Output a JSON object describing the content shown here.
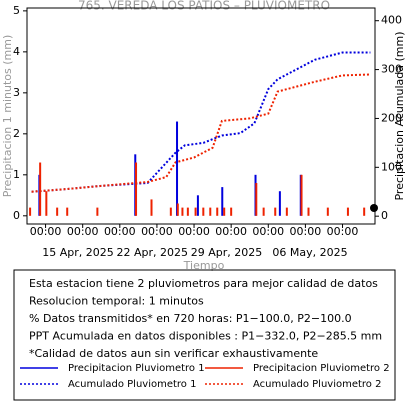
{
  "chart_data": {
    "type": "combo",
    "title": "765. VEREDA LOS PATIOS – PLUVIOMETRO",
    "xlabel": "Tiempo",
    "ylabel": "Precipitacion 1 minutos (mm)",
    "y2label": "Precipitacion Acumulada (mm)",
    "xlim": [
      "2025-04-11T00:00",
      "2025-05-18T12:00"
    ],
    "xticks": [
      {
        "value": "2025-04-13T00:00",
        "label": "00:00"
      },
      {
        "value": "2025-04-17T00:00",
        "label": "00:00"
      },
      {
        "value": "2025-04-21T00:00",
        "label": "00:00"
      },
      {
        "value": "2025-04-25T00:00",
        "label": "00:00"
      },
      {
        "value": "2025-04-29T00:00",
        "label": "00:00"
      },
      {
        "value": "2025-05-03T00:00",
        "label": "00:00"
      },
      {
        "value": "2025-05-07T00:00",
        "label": "00:00"
      },
      {
        "value": "2025-05-11T00:00",
        "label": "00:00"
      },
      {
        "value": "2025-05-15T00:00",
        "label": "00:00"
      }
    ],
    "xdates": [
      {
        "value": "2025-04-16T12:00",
        "label": "15 Apr, 2025"
      },
      {
        "value": "2025-04-24T12:00",
        "label": "22 Apr, 2025"
      },
      {
        "value": "2025-05-02T12:00",
        "label": "29 Apr, 2025"
      },
      {
        "value": "2025-05-11T12:00",
        "label": "06 May, 2025"
      }
    ],
    "ylim": [
      -0.2,
      5.07
    ],
    "yticks": [
      0,
      1,
      2,
      3,
      4,
      5
    ],
    "y2lim": [
      -16,
      426
    ],
    "y2ticks": [
      0,
      100,
      200,
      300,
      400
    ],
    "series": [
      {
        "name": "Precipitacion Pluviometro 1",
        "type": "bar",
        "color": "#0000dd",
        "x": [
          "2025-04-12T08:00",
          "2025-04-22T16:00",
          "2025-04-27T04:00",
          "2025-05-02T01:00",
          "2025-05-05T15:00",
          "2025-05-10T12:00",
          "2025-04-29T10:00",
          "2025-05-08T06:00"
        ],
        "values": [
          1.0,
          1.5,
          2.3,
          0.7,
          1.0,
          1.0,
          0.5,
          0.6
        ]
      },
      {
        "name": "Precipitacion Pluviometro 2",
        "type": "bar",
        "color": "#ee2200",
        "x": [
          "2025-04-11T08:00",
          "2025-04-12T10:00",
          "2025-04-13T02:00",
          "2025-04-14T06:00",
          "2025-04-15T08:00",
          "2025-04-18T14:00",
          "2025-04-22T18:00",
          "2025-04-24T10:00",
          "2025-04-26T12:00",
          "2025-04-27T06:00",
          "2025-04-27T18:00",
          "2025-04-28T08:00",
          "2025-04-29T04:00",
          "2025-04-30T00:00",
          "2025-04-30T18:00",
          "2025-05-01T12:00",
          "2025-05-02T06:00",
          "2025-05-03T00:00",
          "2025-05-05T17:00",
          "2025-05-06T12:00",
          "2025-05-07T18:00",
          "2025-05-09T00:00",
          "2025-05-10T14:00",
          "2025-05-11T08:00",
          "2025-05-13T10:00",
          "2025-05-15T14:00",
          "2025-05-17T08:00"
        ],
        "values": [
          0.2,
          1.3,
          0.6,
          0.2,
          0.2,
          0.2,
          1.3,
          0.4,
          0.2,
          0.3,
          0.2,
          0.2,
          0.2,
          0.2,
          0.2,
          0.2,
          0.2,
          0.2,
          0.8,
          0.2,
          0.2,
          0.2,
          1.0,
          0.2,
          0.2,
          0.2,
          0.2
        ]
      },
      {
        "name": "Acumulado Pluviometro 1",
        "type": "line",
        "axis": "y2",
        "color": "#0000dd",
        "x": [
          "2025-04-11T12:00",
          "2025-04-15T00:00",
          "2025-04-19T00:00",
          "2025-04-24T00:00",
          "2025-04-27T00:00",
          "2025-04-28T00:00",
          "2025-04-30T00:00",
          "2025-05-02T00:00",
          "2025-05-04T00:00",
          "2025-05-05T12:00",
          "2025-05-07T00:00",
          "2025-05-08T00:00",
          "2025-05-10T00:00",
          "2025-05-12T00:00",
          "2025-05-15T00:00",
          "2025-05-18T00:00"
        ],
        "values": [
          50,
          55,
          62,
          68,
          130,
          145,
          150,
          165,
          170,
          190,
          260,
          280,
          300,
          320,
          335,
          335
        ]
      },
      {
        "name": "Acumulado Pluviometro 2",
        "type": "line",
        "axis": "y2",
        "color": "#ee2200",
        "x": [
          "2025-04-11T12:00",
          "2025-04-15T00:00",
          "2025-04-19T00:00",
          "2025-04-24T00:00",
          "2025-04-26T00:00",
          "2025-04-27T00:00",
          "2025-04-29T00:00",
          "2025-05-01T00:00",
          "2025-05-02T00:00",
          "2025-05-05T00:00",
          "2025-05-07T00:00",
          "2025-05-08T00:00",
          "2025-05-10T00:00",
          "2025-05-12T00:00",
          "2025-05-15T00:00",
          "2025-05-18T00:00"
        ],
        "values": [
          50,
          55,
          62,
          70,
          80,
          110,
          120,
          140,
          195,
          200,
          210,
          255,
          265,
          275,
          288,
          290
        ]
      }
    ],
    "notes": [
      "Esta estacion tiene 2 pluviometros para mejor calidad de datos",
      "Resolucion temporal: 1 minutos",
      "% Datos transmitidos* en 720 horas: P1−100.0, P2−100.0",
      "PPT Acumulada en datos disponibles : P1−332.0, P2−285.5 mm",
      "*Calidad de datos aun sin verificar exhaustivamente"
    ]
  }
}
